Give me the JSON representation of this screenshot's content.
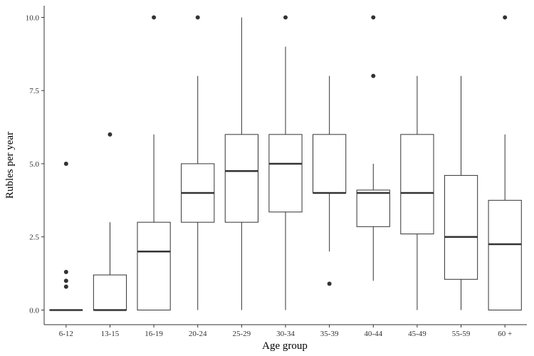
{
  "chart_data": {
    "type": "box",
    "title": "",
    "xlabel": "Age group",
    "ylabel": "Rubles per year",
    "ylim": [
      -0.5,
      10.4
    ],
    "y_ticks": [
      0.0,
      2.5,
      5.0,
      7.5,
      10.0
    ],
    "y_tick_labels": [
      "0.0",
      "2.5",
      "5.0",
      "7.5",
      "10.0"
    ],
    "grid": false,
    "categories": [
      "6-12",
      "13-15",
      "16-19",
      "20-24",
      "25-29",
      "30-34",
      "35-39",
      "40-44",
      "45-49",
      "55-59",
      "60 +"
    ],
    "boxes": [
      {
        "category": "6-12",
        "whisker_low": 0,
        "q1": 0,
        "median": 0,
        "q3": 0,
        "whisker_high": 0,
        "outliers": [
          0.8,
          1.0,
          1.3,
          5.0
        ]
      },
      {
        "category": "13-15",
        "whisker_low": 0,
        "q1": 0,
        "median": 0,
        "q3": 1.2,
        "whisker_high": 3,
        "outliers": [
          6.0
        ]
      },
      {
        "category": "16-19",
        "whisker_low": 0,
        "q1": 0,
        "median": 2,
        "q3": 3,
        "whisker_high": 6,
        "outliers": [
          10.0
        ]
      },
      {
        "category": "20-24",
        "whisker_low": 0,
        "q1": 3,
        "median": 4,
        "q3": 5,
        "whisker_high": 8,
        "outliers": [
          10.0
        ]
      },
      {
        "category": "25-29",
        "whisker_low": 0,
        "q1": 3,
        "median": 4.75,
        "q3": 6,
        "whisker_high": 10,
        "outliers": []
      },
      {
        "category": "30-34",
        "whisker_low": 0,
        "q1": 3.35,
        "median": 5,
        "q3": 6,
        "whisker_high": 9,
        "outliers": [
          10.0
        ]
      },
      {
        "category": "35-39",
        "whisker_low": 2,
        "q1": 4,
        "median": 4,
        "q3": 6,
        "whisker_high": 8,
        "outliers": [
          0.9
        ]
      },
      {
        "category": "40-44",
        "whisker_low": 1,
        "q1": 2.85,
        "median": 4,
        "q3": 4.1,
        "whisker_high": 5,
        "outliers": [
          8.0,
          10.0
        ]
      },
      {
        "category": "45-49",
        "whisker_low": 0,
        "q1": 2.6,
        "median": 4,
        "q3": 6,
        "whisker_high": 8,
        "outliers": []
      },
      {
        "category": "55-59",
        "whisker_low": 0,
        "q1": 1.05,
        "median": 2.5,
        "q3": 4.6,
        "whisker_high": 8,
        "outliers": []
      },
      {
        "category": "60 +",
        "whisker_low": 0,
        "q1": 0,
        "median": 2.25,
        "q3": 3.75,
        "whisker_high": 6,
        "outliers": [
          10.0
        ]
      }
    ],
    "colors": {
      "box_line": "#333333",
      "outlier": "#333333",
      "axis": "#333333",
      "text": "#333333"
    }
  }
}
